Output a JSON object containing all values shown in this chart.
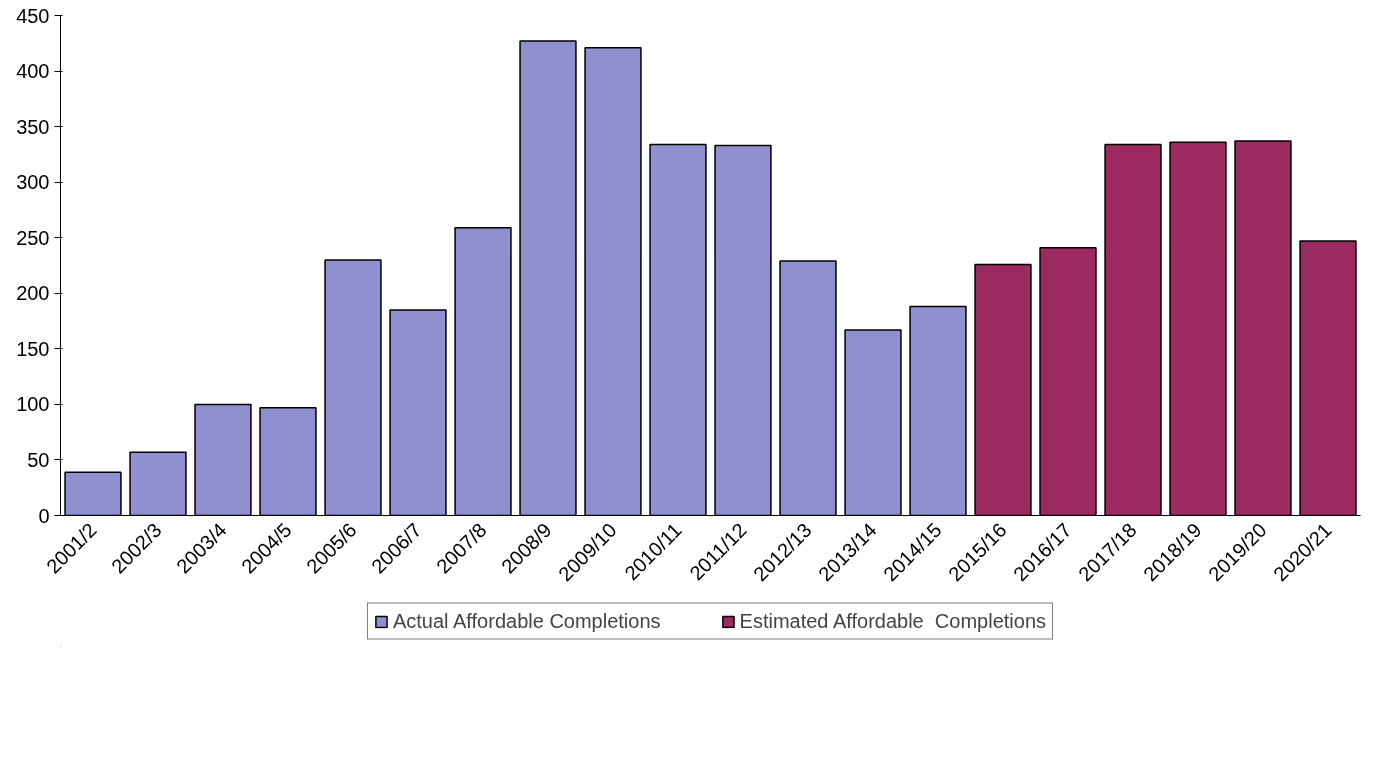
{
  "chart_data": {
    "type": "bar",
    "stacked": true,
    "categories": [
      "2001/2",
      "2002/3",
      "2003/4",
      "2004/5",
      "2005/6",
      "2006/7",
      "2007/8",
      "2008/9",
      "2009/10",
      "2010/11",
      "2011/12",
      "2012/13",
      "2013/14",
      "2014/15",
      "2015/16",
      "2016/17",
      "2017/18",
      "2018/19",
      "2019/20",
      "2020/21"
    ],
    "series": [
      {
        "name": "Actual Affordable Completions",
        "color": "#9090d0",
        "values": [
          39,
          57,
          100,
          97,
          230,
          185,
          259,
          427,
          421,
          334,
          333,
          229,
          167,
          188,
          null,
          null,
          null,
          null,
          null,
          null
        ]
      },
      {
        "name": "Estimated Affordable  Completions",
        "color": "#9a2a60",
        "values": [
          null,
          null,
          null,
          null,
          null,
          null,
          null,
          null,
          null,
          null,
          null,
          null,
          null,
          null,
          226,
          241,
          334,
          336,
          337,
          247
        ]
      }
    ],
    "ylim": [
      0,
      450
    ],
    "yticks": [
      0,
      50,
      100,
      150,
      200,
      250,
      300,
      350,
      400,
      450
    ],
    "grid": false,
    "legend": "bottom"
  }
}
